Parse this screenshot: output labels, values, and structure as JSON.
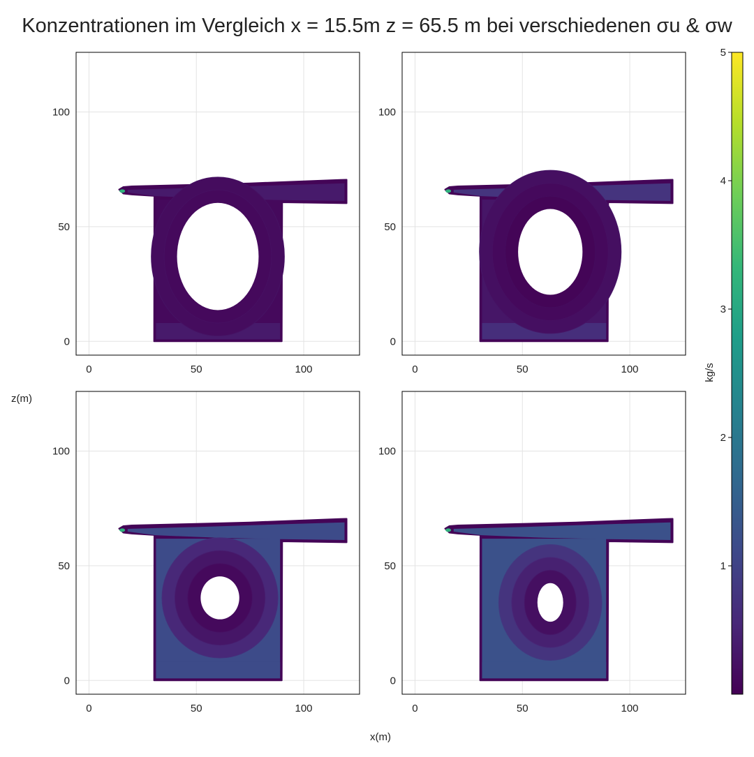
{
  "chart_data": {
    "type": "heatmap",
    "title": "Konzentrationen im Vergleich x = 15.5m z = 65.5 m bei verschiedenen σu & σw",
    "xlabel": "x(m)",
    "ylabel": "z(m)",
    "xlim": [
      -6,
      126
    ],
    "ylim": [
      -6,
      126
    ],
    "xticks": [
      "0",
      "50",
      "100"
    ],
    "yticks": [
      "0",
      "50",
      "100"
    ],
    "grid": true,
    "colorscale": "viridis",
    "colorbar": {
      "label": "kg/s",
      "range": [
        0,
        5
      ],
      "ticks": [
        "1",
        "2",
        "3",
        "4",
        "5"
      ],
      "colors": [
        "#440154",
        "#482878",
        "#3e4989",
        "#31688e",
        "#26828e",
        "#1f9e89",
        "#35b779",
        "#6ece58",
        "#b5de2b",
        "#fde725"
      ]
    },
    "panels": [
      {
        "panel": "top-left",
        "source": [
          15.5,
          65.5
        ],
        "duct_level": 0.35,
        "shaft_level": 0.12,
        "bottom_level": 0.35,
        "core_hole": [
          60,
          37,
          19,
          25
        ],
        "ring_levels": [
          0.15,
          0.12
        ]
      },
      {
        "panel": "top-right",
        "source": [
          15.5,
          65.5
        ],
        "duct_level": 0.75,
        "shaft_level": 0.3,
        "bottom_level": 0.65,
        "core_hole": [
          63,
          39,
          15,
          20
        ],
        "ring_levels": [
          0.2,
          0.12,
          0.05
        ]
      },
      {
        "panel": "bottom-left",
        "source": [
          15.5,
          65.5
        ],
        "duct_level": 1.15,
        "shaft_level": 1.15,
        "bottom_level": 1.15,
        "core_hole": [
          61,
          36,
          9,
          10
        ],
        "ring_levels": [
          0.55,
          0.3,
          0.12
        ]
      },
      {
        "panel": "bottom-right",
        "source": [
          15.5,
          65.5
        ],
        "duct_level": 1.25,
        "shaft_level": 1.25,
        "bottom_level": 1.25,
        "core_hole": [
          63,
          34,
          6,
          9
        ],
        "ring_levels": [
          0.75,
          0.45,
          0.2
        ]
      }
    ]
  }
}
